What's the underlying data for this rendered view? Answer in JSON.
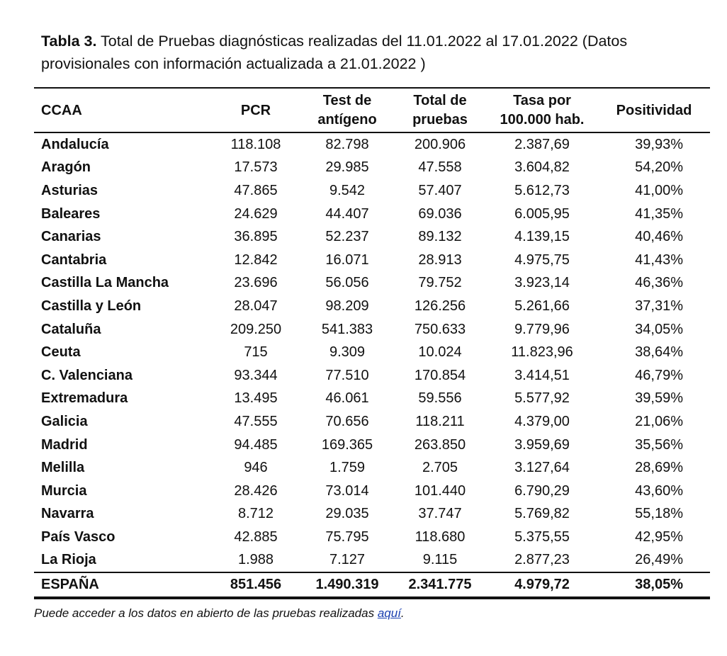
{
  "caption": {
    "label": "Tabla 3.",
    "text": " Total de Pruebas diagnósticas realizadas del 11.01.2022 al 17.01.2022 (Datos provisionales con información actualizada a 21.01.2022 )"
  },
  "table": {
    "headers": [
      "CCAA",
      "PCR",
      "Test de antígeno",
      "Total de pruebas",
      "Tasa por 100.000 hab.",
      "Positividad"
    ],
    "rows": [
      [
        "Andalucía",
        "118.108",
        "82.798",
        "200.906",
        "2.387,69",
        "39,93%"
      ],
      [
        "Aragón",
        "17.573",
        "29.985",
        "47.558",
        "3.604,82",
        "54,20%"
      ],
      [
        "Asturias",
        "47.865",
        "9.542",
        "57.407",
        "5.612,73",
        "41,00%"
      ],
      [
        "Baleares",
        "24.629",
        "44.407",
        "69.036",
        "6.005,95",
        "41,35%"
      ],
      [
        "Canarias",
        "36.895",
        "52.237",
        "89.132",
        "4.139,15",
        "40,46%"
      ],
      [
        "Cantabria",
        "12.842",
        "16.071",
        "28.913",
        "4.975,75",
        "41,43%"
      ],
      [
        "Castilla La Mancha",
        "23.696",
        "56.056",
        "79.752",
        "3.923,14",
        "46,36%"
      ],
      [
        "Castilla y León",
        "28.047",
        "98.209",
        "126.256",
        "5.261,66",
        "37,31%"
      ],
      [
        "Cataluña",
        "209.250",
        "541.383",
        "750.633",
        "9.779,96",
        "34,05%"
      ],
      [
        "Ceuta",
        "715",
        "9.309",
        "10.024",
        "11.823,96",
        "38,64%"
      ],
      [
        "C. Valenciana",
        "93.344",
        "77.510",
        "170.854",
        "3.414,51",
        "46,79%"
      ],
      [
        "Extremadura",
        "13.495",
        "46.061",
        "59.556",
        "5.577,92",
        "39,59%"
      ],
      [
        "Galicia",
        "47.555",
        "70.656",
        "118.211",
        "4.379,00",
        "21,06%"
      ],
      [
        "Madrid",
        "94.485",
        "169.365",
        "263.850",
        "3.959,69",
        "35,56%"
      ],
      [
        "Melilla",
        "946",
        "1.759",
        "2.705",
        "3.127,64",
        "28,69%"
      ],
      [
        "Murcia",
        "28.426",
        "73.014",
        "101.440",
        "6.790,29",
        "43,60%"
      ],
      [
        "Navarra",
        "8.712",
        "29.035",
        "37.747",
        "5.769,82",
        "55,18%"
      ],
      [
        "País Vasco",
        "42.885",
        "75.795",
        "118.680",
        "5.375,55",
        "42,95%"
      ],
      [
        "La Rioja",
        "1.988",
        "7.127",
        "9.115",
        "2.877,23",
        "26,49%"
      ]
    ],
    "total": [
      "ESPAÑA",
      "851.456",
      "1.490.319",
      "2.341.775",
      "4.979,72",
      "38,05%"
    ]
  },
  "footer": {
    "text": "Puede acceder a los datos en abierto de las pruebas realizadas ",
    "link": "aquí",
    "suffix": "."
  },
  "colors": {
    "link": "#1a3fb0"
  }
}
